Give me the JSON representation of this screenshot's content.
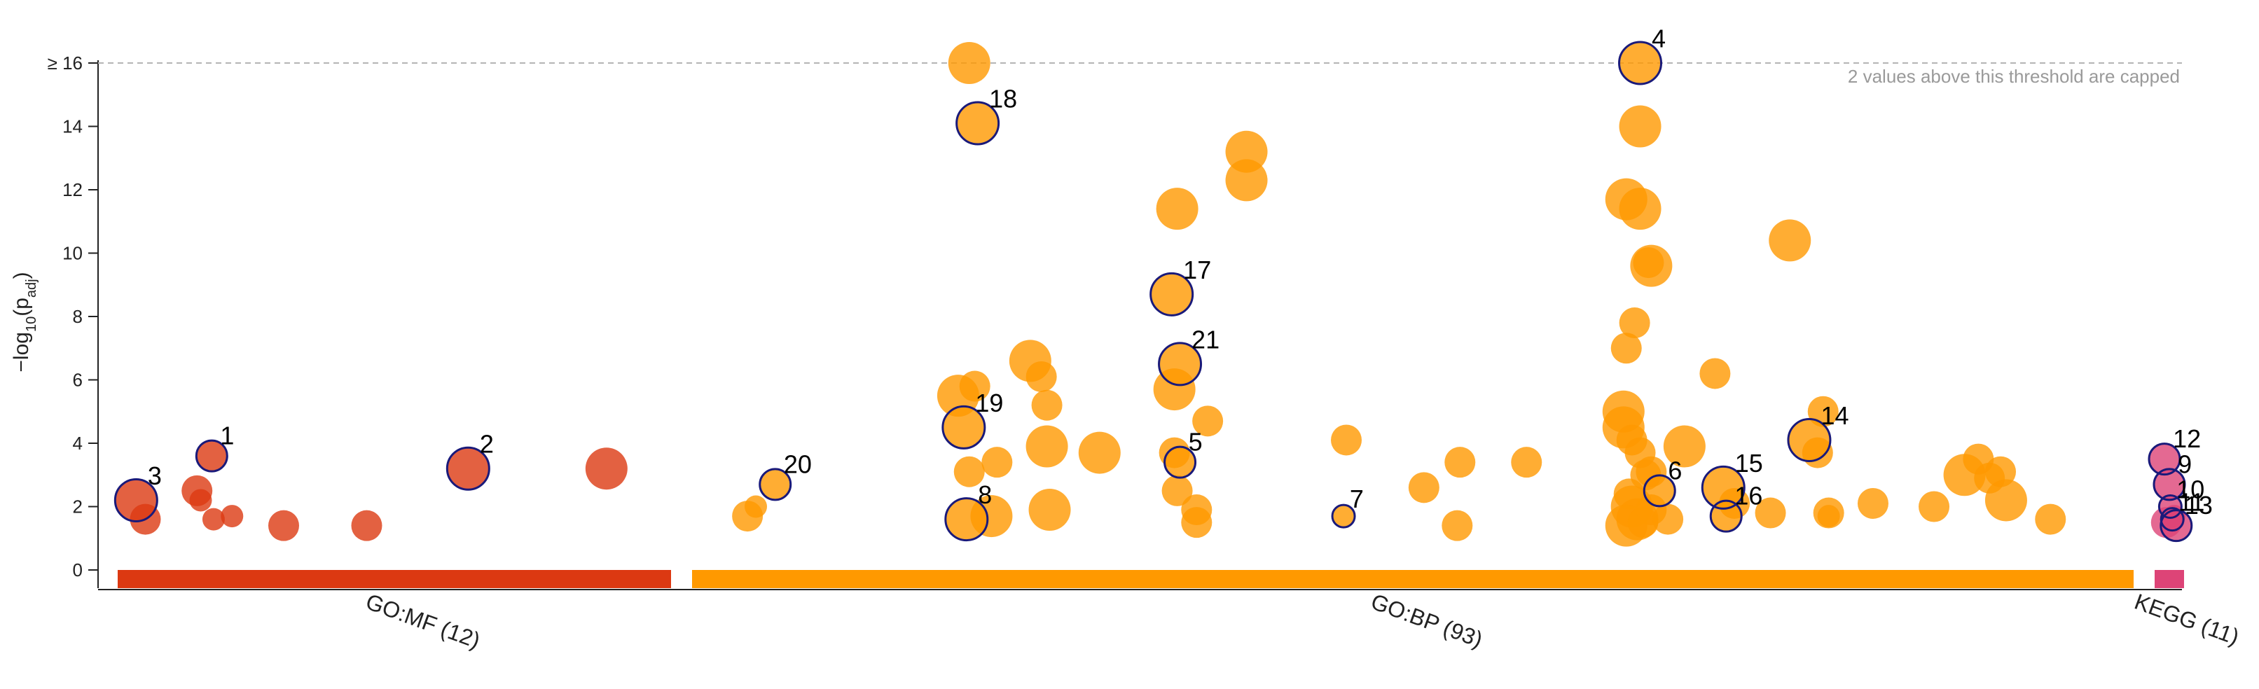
{
  "chart_data": {
    "type": "scatter",
    "title": "",
    "ylabel": "−log₁₀(p_adj)",
    "ylabel_parts": {
      "main": "−log",
      "sub": "10",
      "paren_open": "(p",
      "sub2": "adj",
      "paren_close": ")"
    },
    "ylim": [
      0,
      16
    ],
    "yticks": [
      {
        "value": 0,
        "label": "0"
      },
      {
        "value": 2,
        "label": "2"
      },
      {
        "value": 4,
        "label": "4"
      },
      {
        "value": 6,
        "label": "6"
      },
      {
        "value": 8,
        "label": "8"
      },
      {
        "value": 10,
        "label": "10"
      },
      {
        "value": 12,
        "label": "12"
      },
      {
        "value": 14,
        "label": "14"
      },
      {
        "value": 16,
        "label": "≥ 16"
      }
    ],
    "threshold": {
      "value": 16,
      "note": "2 values above this threshold are capped"
    },
    "grid": false,
    "categories": [
      {
        "id": "mf",
        "label": "GO:MF (12)",
        "color": "#dc3912"
      },
      {
        "id": "bp",
        "label": "GO:BP (93)",
        "color": "#ff9900"
      },
      {
        "id": "kegg",
        "label": "KEGG (11)",
        "color": "#dd4477"
      }
    ],
    "series": [
      {
        "category": "mf",
        "color": "#dc3912",
        "points": [
          {
            "x": 1.0,
            "y": 2.2,
            "s": 2,
            "label": "3",
            "highlight": true
          },
          {
            "x": 1.5,
            "y": 1.6,
            "s": 1
          },
          {
            "x": 4.3,
            "y": 2.5,
            "s": 1
          },
          {
            "x": 4.5,
            "y": 2.2,
            "s": 0
          },
          {
            "x": 5.1,
            "y": 3.6,
            "s": 1,
            "label": "1",
            "highlight": true
          },
          {
            "x": 5.2,
            "y": 1.6,
            "s": 0
          },
          {
            "x": 6.2,
            "y": 1.7,
            "s": 0
          },
          {
            "x": 9.0,
            "y": 1.4,
            "s": 1
          },
          {
            "x": 13.5,
            "y": 1.4,
            "s": 1
          },
          {
            "x": 19.0,
            "y": 3.2,
            "s": 2,
            "label": "2",
            "highlight": true
          },
          {
            "x": 26.5,
            "y": 3.2,
            "s": 2
          }
        ]
      },
      {
        "category": "bp",
        "color": "#ff9900",
        "points": [
          {
            "x": 2.0,
            "y": 1.7,
            "s": 1
          },
          {
            "x": 2.3,
            "y": 2.0,
            "s": 0
          },
          {
            "x": 3.0,
            "y": 2.7,
            "s": 1,
            "label": "20",
            "highlight": true
          },
          {
            "x": 10.0,
            "y": 16.0,
            "s": 2
          },
          {
            "x": 10.3,
            "y": 14.1,
            "s": 2,
            "label": "18",
            "highlight": true
          },
          {
            "x": 9.6,
            "y": 5.5,
            "s": 2
          },
          {
            "x": 9.8,
            "y": 4.5,
            "s": 2,
            "label": "19",
            "highlight": true
          },
          {
            "x": 10.2,
            "y": 5.8,
            "s": 1
          },
          {
            "x": 10.0,
            "y": 3.1,
            "s": 1
          },
          {
            "x": 9.9,
            "y": 1.6,
            "s": 2,
            "label": "8",
            "highlight": true
          },
          {
            "x": 10.8,
            "y": 1.7,
            "s": 2
          },
          {
            "x": 11.0,
            "y": 3.4,
            "s": 1
          },
          {
            "x": 12.2,
            "y": 6.6,
            "s": 2
          },
          {
            "x": 12.6,
            "y": 6.1,
            "s": 1
          },
          {
            "x": 12.8,
            "y": 5.2,
            "s": 1
          },
          {
            "x": 12.8,
            "y": 3.9,
            "s": 2
          },
          {
            "x": 12.9,
            "y": 1.9,
            "s": 2
          },
          {
            "x": 14.7,
            "y": 3.7,
            "s": 2
          },
          {
            "x": 17.5,
            "y": 11.4,
            "s": 2
          },
          {
            "x": 17.3,
            "y": 8.7,
            "s": 2,
            "label": "17",
            "highlight": true
          },
          {
            "x": 17.6,
            "y": 6.5,
            "s": 2,
            "label": "21",
            "highlight": true
          },
          {
            "x": 17.4,
            "y": 5.7,
            "s": 2
          },
          {
            "x": 17.4,
            "y": 3.7,
            "s": 1
          },
          {
            "x": 17.6,
            "y": 3.4,
            "s": 1,
            "label": "5",
            "highlight": true
          },
          {
            "x": 17.5,
            "y": 2.5,
            "s": 1
          },
          {
            "x": 18.2,
            "y": 1.9,
            "s": 1
          },
          {
            "x": 18.2,
            "y": 1.5,
            "s": 1
          },
          {
            "x": 18.6,
            "y": 4.7,
            "s": 1
          },
          {
            "x": 20.0,
            "y": 13.2,
            "s": 2
          },
          {
            "x": 20.0,
            "y": 12.3,
            "s": 2
          },
          {
            "x": 23.5,
            "y": 1.7,
            "s": 0,
            "label": "7",
            "highlight": true
          },
          {
            "x": 23.6,
            "y": 4.1,
            "s": 1
          },
          {
            "x": 26.4,
            "y": 2.6,
            "s": 1
          },
          {
            "x": 27.7,
            "y": 3.4,
            "s": 1
          },
          {
            "x": 27.6,
            "y": 1.4,
            "s": 1
          },
          {
            "x": 30.1,
            "y": 3.4,
            "s": 1
          },
          {
            "x": 34.2,
            "y": 16.0,
            "s": 2,
            "label": "4",
            "highlight": true
          },
          {
            "x": 34.2,
            "y": 14.0,
            "s": 2
          },
          {
            "x": 33.7,
            "y": 11.7,
            "s": 2
          },
          {
            "x": 34.2,
            "y": 11.4,
            "s": 2
          },
          {
            "x": 34.6,
            "y": 9.6,
            "s": 2
          },
          {
            "x": 34.5,
            "y": 9.7,
            "s": 1
          },
          {
            "x": 34.0,
            "y": 7.8,
            "s": 1
          },
          {
            "x": 33.7,
            "y": 7.0,
            "s": 1
          },
          {
            "x": 33.6,
            "y": 5.0,
            "s": 2
          },
          {
            "x": 33.6,
            "y": 4.5,
            "s": 2
          },
          {
            "x": 33.9,
            "y": 4.1,
            "s": 1
          },
          {
            "x": 34.2,
            "y": 3.7,
            "s": 1
          },
          {
            "x": 34.6,
            "y": 3.1,
            "s": 1
          },
          {
            "x": 34.4,
            "y": 3.0,
            "s": 1
          },
          {
            "x": 33.8,
            "y": 2.4,
            "s": 1
          },
          {
            "x": 33.9,
            "y": 2.0,
            "s": 2
          },
          {
            "x": 34.1,
            "y": 1.6,
            "s": 2
          },
          {
            "x": 33.7,
            "y": 1.4,
            "s": 2
          },
          {
            "x": 34.3,
            "y": 1.5,
            "s": 1
          },
          {
            "x": 34.6,
            "y": 1.9,
            "s": 1
          },
          {
            "x": 34.9,
            "y": 2.5,
            "s": 1,
            "label": "6",
            "highlight": true
          },
          {
            "x": 35.2,
            "y": 1.6,
            "s": 1
          },
          {
            "x": 35.8,
            "y": 3.9,
            "s": 2
          },
          {
            "x": 36.9,
            "y": 6.2,
            "s": 1
          },
          {
            "x": 37.2,
            "y": 2.6,
            "s": 2,
            "label": "15",
            "highlight": true
          },
          {
            "x": 37.6,
            "y": 2.1,
            "s": 1
          },
          {
            "x": 37.3,
            "y": 1.7,
            "s": 1,
            "label": "16",
            "highlight": true
          },
          {
            "x": 38.9,
            "y": 1.8,
            "s": 1
          },
          {
            "x": 39.6,
            "y": 10.4,
            "s": 2
          },
          {
            "x": 40.3,
            "y": 4.1,
            "s": 2,
            "label": "14",
            "highlight": true
          },
          {
            "x": 40.8,
            "y": 5.0,
            "s": 1
          },
          {
            "x": 40.6,
            "y": 3.7,
            "s": 1
          },
          {
            "x": 41.0,
            "y": 1.8,
            "s": 1
          },
          {
            "x": 41.0,
            "y": 1.7,
            "s": 0
          },
          {
            "x": 42.6,
            "y": 2.1,
            "s": 1
          },
          {
            "x": 44.8,
            "y": 2.0,
            "s": 1
          },
          {
            "x": 45.9,
            "y": 3.0,
            "s": 2
          },
          {
            "x": 46.4,
            "y": 3.5,
            "s": 1
          },
          {
            "x": 46.8,
            "y": 2.9,
            "s": 1
          },
          {
            "x": 47.2,
            "y": 3.1,
            "s": 1
          },
          {
            "x": 47.4,
            "y": 2.2,
            "s": 2
          },
          {
            "x": 49.0,
            "y": 1.6,
            "s": 1
          }
        ]
      },
      {
        "category": "kegg",
        "color": "#dd4477",
        "points": [
          {
            "x": 1.0,
            "y": 3.5,
            "s": 1,
            "label": "12",
            "highlight": true
          },
          {
            "x": 1.5,
            "y": 2.7,
            "s": 1,
            "label": "9",
            "highlight": true
          },
          {
            "x": 1.6,
            "y": 2.0,
            "s": 0,
            "label": "10",
            "highlight": true
          },
          {
            "x": 1.8,
            "y": 1.6,
            "s": 0,
            "label": "11",
            "highlight": true
          },
          {
            "x": 2.0,
            "y": 1.7,
            "s": 0
          },
          {
            "x": 1.2,
            "y": 1.5,
            "s": 1
          },
          {
            "x": 2.2,
            "y": 1.4,
            "s": 1,
            "label": "13",
            "highlight": true
          }
        ]
      }
    ]
  }
}
